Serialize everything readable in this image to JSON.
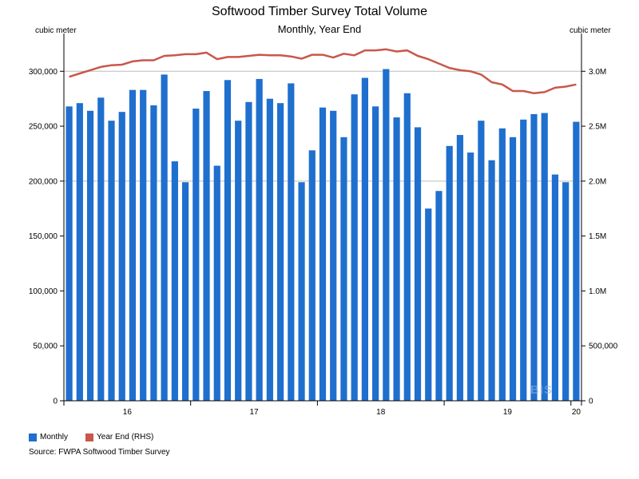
{
  "chart_data": {
    "type": "bar",
    "title": "Softwood Timber Survey Total Volume",
    "subtitle": "Monthly, Year End",
    "ylabel_left": "cubic meter",
    "ylabel_right": "cubic meter",
    "ylim_left": [
      0,
      330000
    ],
    "ylim_right": [
      0,
      3300000
    ],
    "yticks_left": [
      {
        "value": 0,
        "label": "0"
      },
      {
        "value": 50000,
        "label": "50,000"
      },
      {
        "value": 100000,
        "label": "100,000"
      },
      {
        "value": 150000,
        "label": "150,000"
      },
      {
        "value": 200000,
        "label": "200,000"
      },
      {
        "value": 250000,
        "label": "250,000"
      },
      {
        "value": 300000,
        "label": "300,000"
      }
    ],
    "yticks_right": [
      {
        "value": 0,
        "label": "0"
      },
      {
        "value": 500000,
        "label": "500,000"
      },
      {
        "value": 1000000,
        "label": "1.0M"
      },
      {
        "value": 1500000,
        "label": "1.5M"
      },
      {
        "value": 2000000,
        "label": "2.0M"
      },
      {
        "value": 2500000,
        "label": "2.5M"
      },
      {
        "value": 3000000,
        "label": "3.0M"
      }
    ],
    "gridlines": [
      200000,
      300000
    ],
    "x_tick_labels": [
      {
        "label": "16",
        "index": 5.5
      },
      {
        "label": "17",
        "index": 17.5
      },
      {
        "label": "18",
        "index": 29.5
      },
      {
        "label": "19",
        "index": 41.5
      },
      {
        "label": "20",
        "index": 48
      }
    ],
    "x_year_boundaries": [
      11.5,
      23.5,
      35.5,
      47.5
    ],
    "series": [
      {
        "name": "Monthly",
        "type": "bar",
        "axis": "left",
        "color": "#1f6fce",
        "values": [
          268000,
          271000,
          264000,
          276000,
          255000,
          263000,
          283000,
          283000,
          269000,
          297000,
          218000,
          199000,
          266000,
          282000,
          214000,
          292000,
          255000,
          272000,
          293000,
          275000,
          271000,
          289000,
          199000,
          228000,
          267000,
          264000,
          240000,
          279000,
          294000,
          268000,
          302000,
          258000,
          280000,
          249000,
          175000,
          191000,
          232000,
          242000,
          226000,
          255000,
          219000,
          248000,
          240000,
          256000,
          261000,
          262000,
          206000,
          199000,
          254000
        ]
      },
      {
        "name": "Year End (RHS)",
        "type": "line",
        "axis": "right",
        "color": "#c9574b",
        "values": [
          2950000,
          2980000,
          3010000,
          3040000,
          3055000,
          3060000,
          3090000,
          3100000,
          3100000,
          3140000,
          3145000,
          3155000,
          3155000,
          3170000,
          3110000,
          3130000,
          3130000,
          3140000,
          3150000,
          3145000,
          3145000,
          3135000,
          3115000,
          3150000,
          3150000,
          3125000,
          3160000,
          3145000,
          3190000,
          3190000,
          3200000,
          3180000,
          3190000,
          3140000,
          3110000,
          3070000,
          3030000,
          3010000,
          3000000,
          2970000,
          2900000,
          2880000,
          2820000,
          2820000,
          2800000,
          2810000,
          2850000,
          2860000,
          2880000
        ]
      }
    ]
  },
  "legend": {
    "monthly_label": "Monthly",
    "monthly_color": "#1f6fce",
    "yearend_label": "Year End (RHS)",
    "yearend_color": "#c9574b"
  },
  "source": "Source: FWPA Softwood Timber Survey",
  "watermark": "BIS"
}
